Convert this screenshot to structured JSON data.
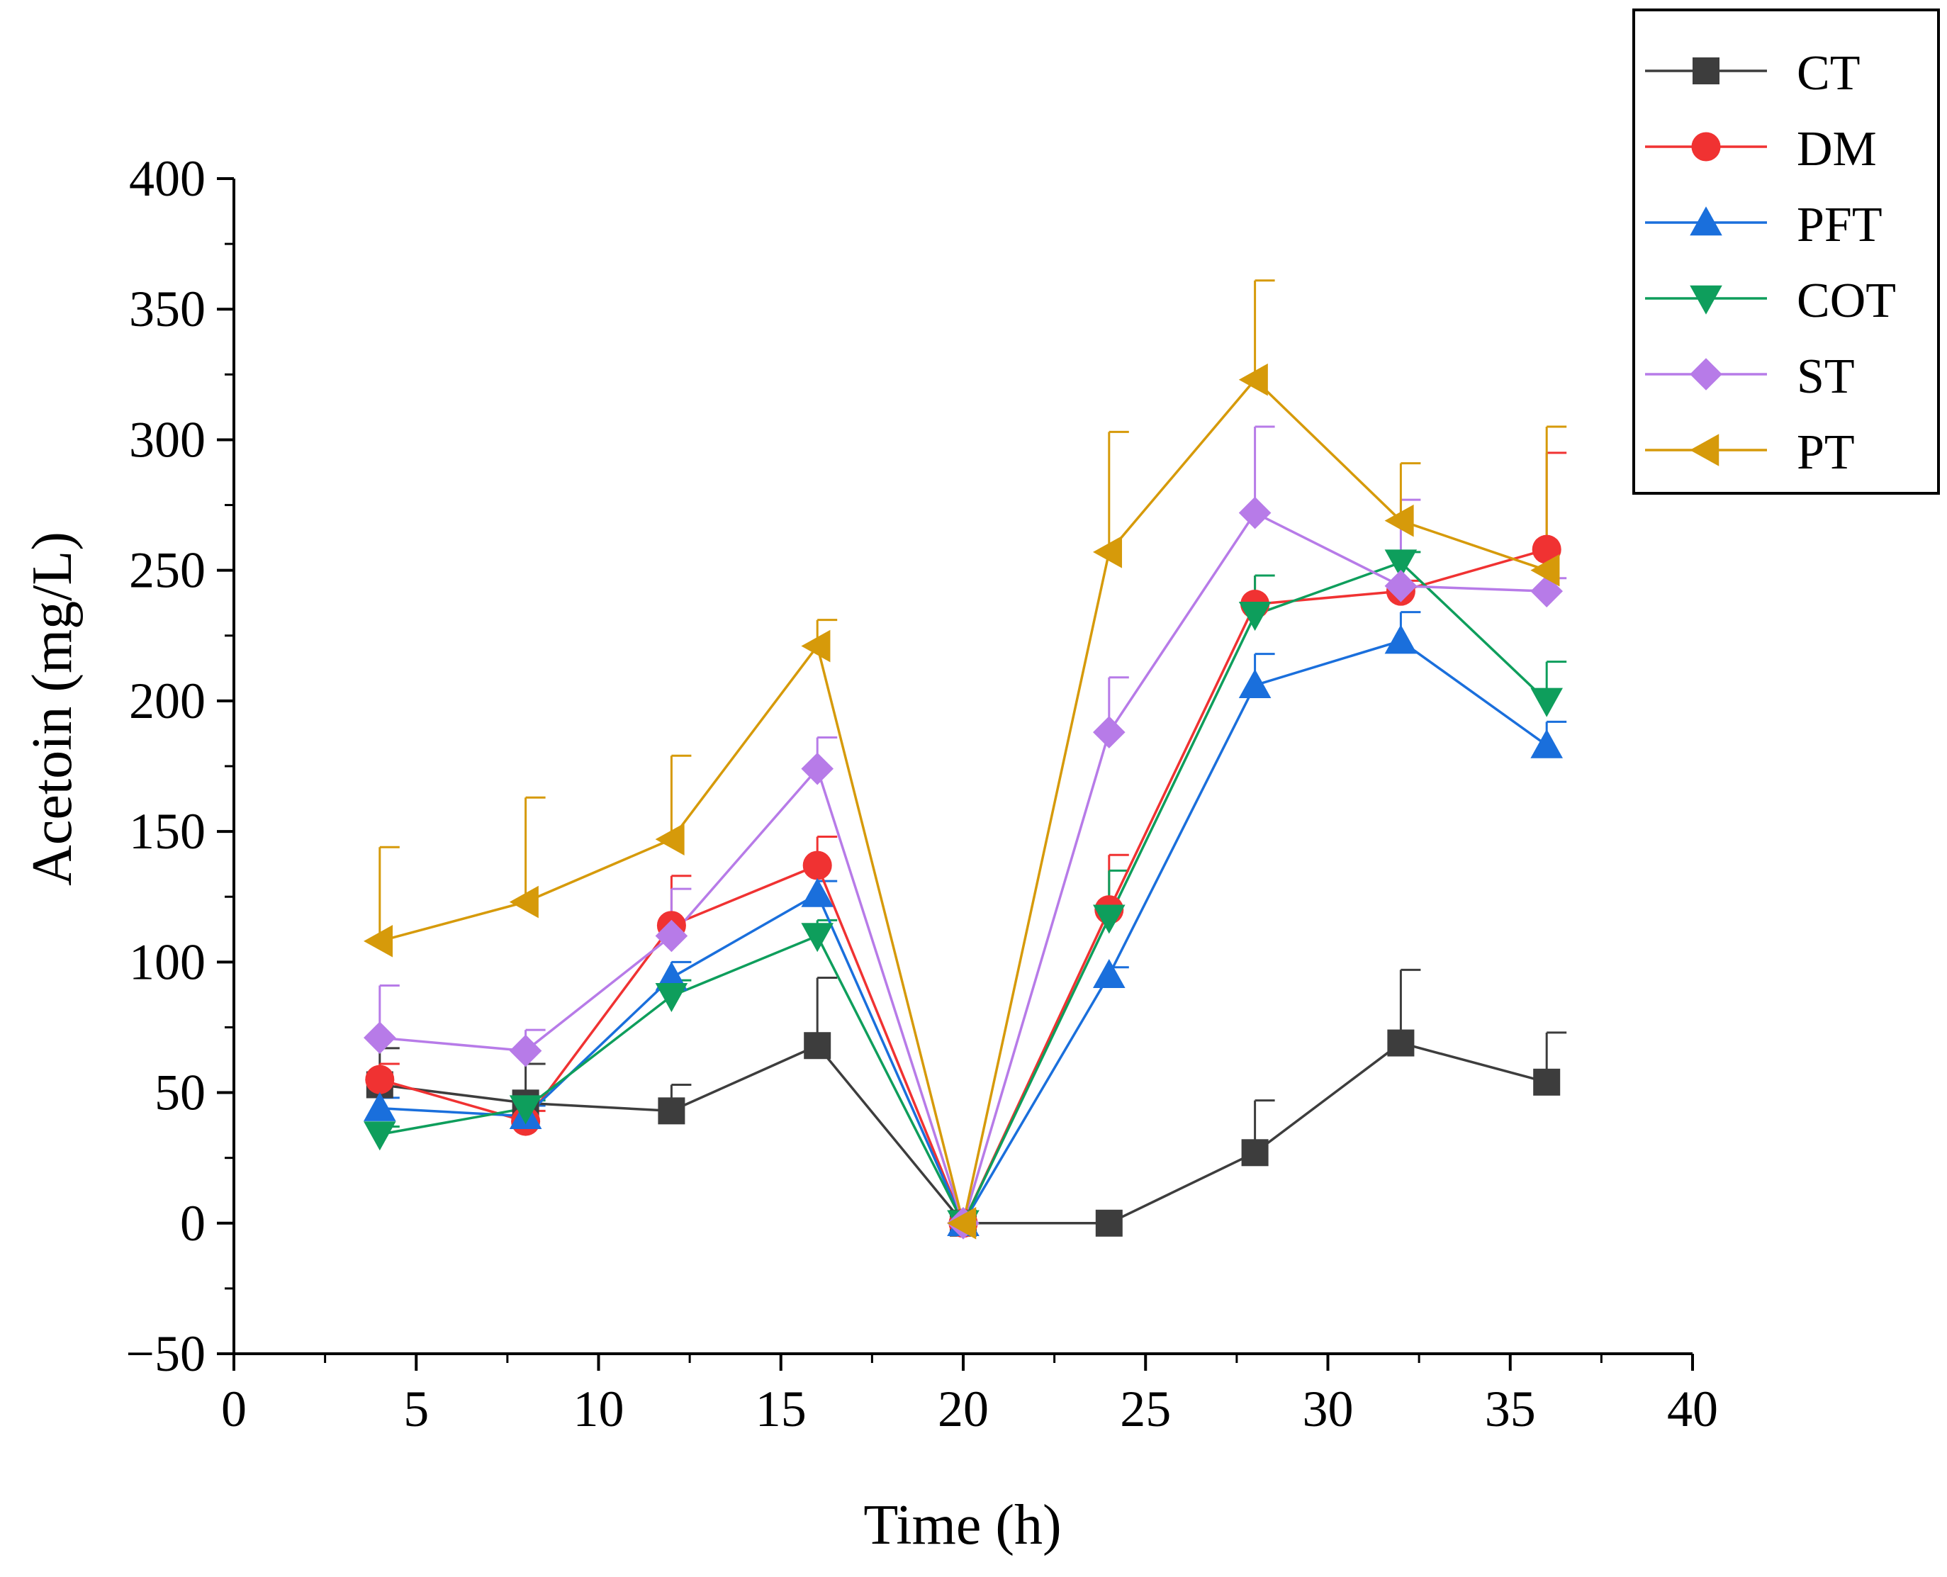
{
  "chart_data": {
    "type": "line",
    "title": "",
    "xlabel": "Time (h)",
    "ylabel": "Acetoin (mg/L)",
    "xlim": [
      0,
      40
    ],
    "ylim": [
      -50,
      400
    ],
    "xticks": [
      0,
      5,
      10,
      15,
      20,
      25,
      30,
      35,
      40
    ],
    "yticks": [
      -50,
      0,
      50,
      100,
      150,
      200,
      250,
      300,
      350,
      400
    ],
    "xtick_labels": [
      "0",
      "5",
      "10",
      "15",
      "20",
      "25",
      "30",
      "35",
      "40"
    ],
    "ytick_labels": [
      "−50",
      "0",
      "50",
      "100",
      "150",
      "200",
      "250",
      "300",
      "350",
      "400"
    ],
    "grid": false,
    "legend_position": "top-right",
    "x": [
      4,
      8,
      12,
      16,
      20,
      24,
      28,
      32,
      36
    ],
    "series": [
      {
        "name": "CT",
        "color": "#3d3d3d",
        "marker": "square",
        "values": [
          53,
          46,
          43,
          68,
          0,
          0,
          27,
          69,
          54
        ],
        "errors": [
          14,
          15,
          10,
          26,
          0,
          0,
          20,
          28,
          19
        ]
      },
      {
        "name": "DM",
        "color": "#f03232",
        "marker": "circle",
        "values": [
          55,
          39,
          114,
          137,
          0,
          120,
          237,
          242,
          258
        ],
        "errors": [
          6,
          4,
          19,
          11,
          0,
          21,
          11,
          4,
          37
        ]
      },
      {
        "name": "PFT",
        "color": "#1a6fdc",
        "marker": "triangle-up",
        "values": [
          44,
          41,
          94,
          126,
          0,
          95,
          206,
          223,
          183
        ],
        "errors": [
          4,
          4,
          6,
          5,
          0,
          3,
          12,
          11,
          9
        ]
      },
      {
        "name": "COT",
        "color": "#0e9e5c",
        "marker": "triangle-down",
        "values": [
          34,
          44,
          87,
          110,
          0,
          117,
          233,
          253,
          200
        ],
        "errors": [
          3,
          3,
          6,
          6,
          0,
          18,
          15,
          4,
          15
        ]
      },
      {
        "name": "ST",
        "color": "#b77be8",
        "marker": "diamond",
        "values": [
          71,
          66,
          110,
          174,
          0,
          188,
          272,
          244,
          242
        ],
        "errors": [
          20,
          8,
          18,
          12,
          0,
          21,
          33,
          33,
          5
        ]
      },
      {
        "name": "PT",
        "color": "#d69a0a",
        "marker": "triangle-left",
        "values": [
          108,
          123,
          147,
          221,
          0,
          257,
          323,
          269,
          250
        ],
        "errors": [
          36,
          40,
          32,
          10,
          0,
          46,
          38,
          22,
          55
        ]
      }
    ]
  }
}
